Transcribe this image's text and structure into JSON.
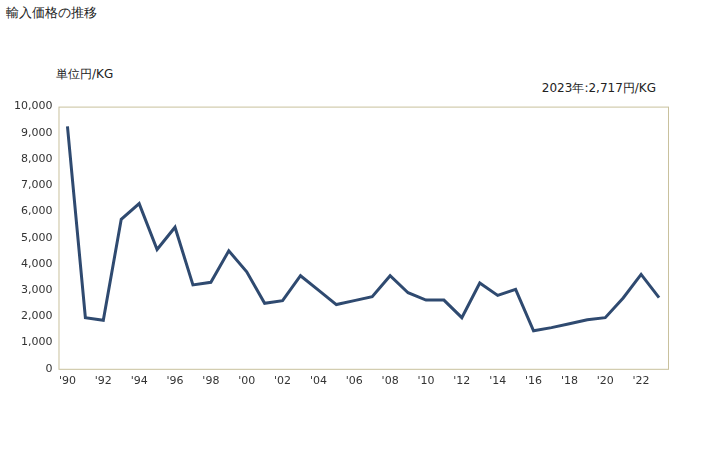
{
  "chart_data": {
    "type": "line",
    "title": "輸入価格の推移",
    "ylabel": "単位円/KG",
    "annotation": "2023年:2,717円/KG",
    "categories": [
      "'90",
      null,
      "'92",
      null,
      "'94",
      null,
      "'96",
      null,
      "'98",
      null,
      "'00",
      null,
      "'02",
      null,
      "'04",
      null,
      "'06",
      null,
      "'08",
      null,
      "'10",
      null,
      "'12",
      null,
      "'14",
      null,
      "'16",
      null,
      "'18",
      null,
      "'20",
      null,
      "'22",
      null
    ],
    "values": [
      9250,
      1950,
      1850,
      5700,
      6300,
      4550,
      5400,
      3200,
      3300,
      4500,
      3700,
      2500,
      2600,
      3550,
      3000,
      2450,
      2600,
      2750,
      3550,
      2900,
      2620,
      2620,
      1950,
      3270,
      2800,
      3030,
      1450,
      1570,
      1720,
      1870,
      1950,
      2700,
      3600,
      2717
    ],
    "color": "#2f4a70",
    "marker": "none",
    "ylim": [
      0,
      10000
    ],
    "yticks": [
      0,
      {
        "value": 1000,
        "label": "1,000"
      },
      {
        "value": 2000,
        "label": "2,000"
      },
      {
        "value": 3000,
        "label": "3,000"
      },
      {
        "value": 4000,
        "label": "4,000"
      },
      {
        "value": 5000,
        "label": "5,000"
      },
      {
        "value": 6000,
        "label": "6,000"
      },
      {
        "value": 7000,
        "label": "7,000"
      },
      {
        "value": 8000,
        "label": "8,000"
      },
      {
        "value": 9000,
        "label": "9,000"
      },
      {
        "value": 10000,
        "label": "10,000"
      }
    ],
    "grid": false
  }
}
